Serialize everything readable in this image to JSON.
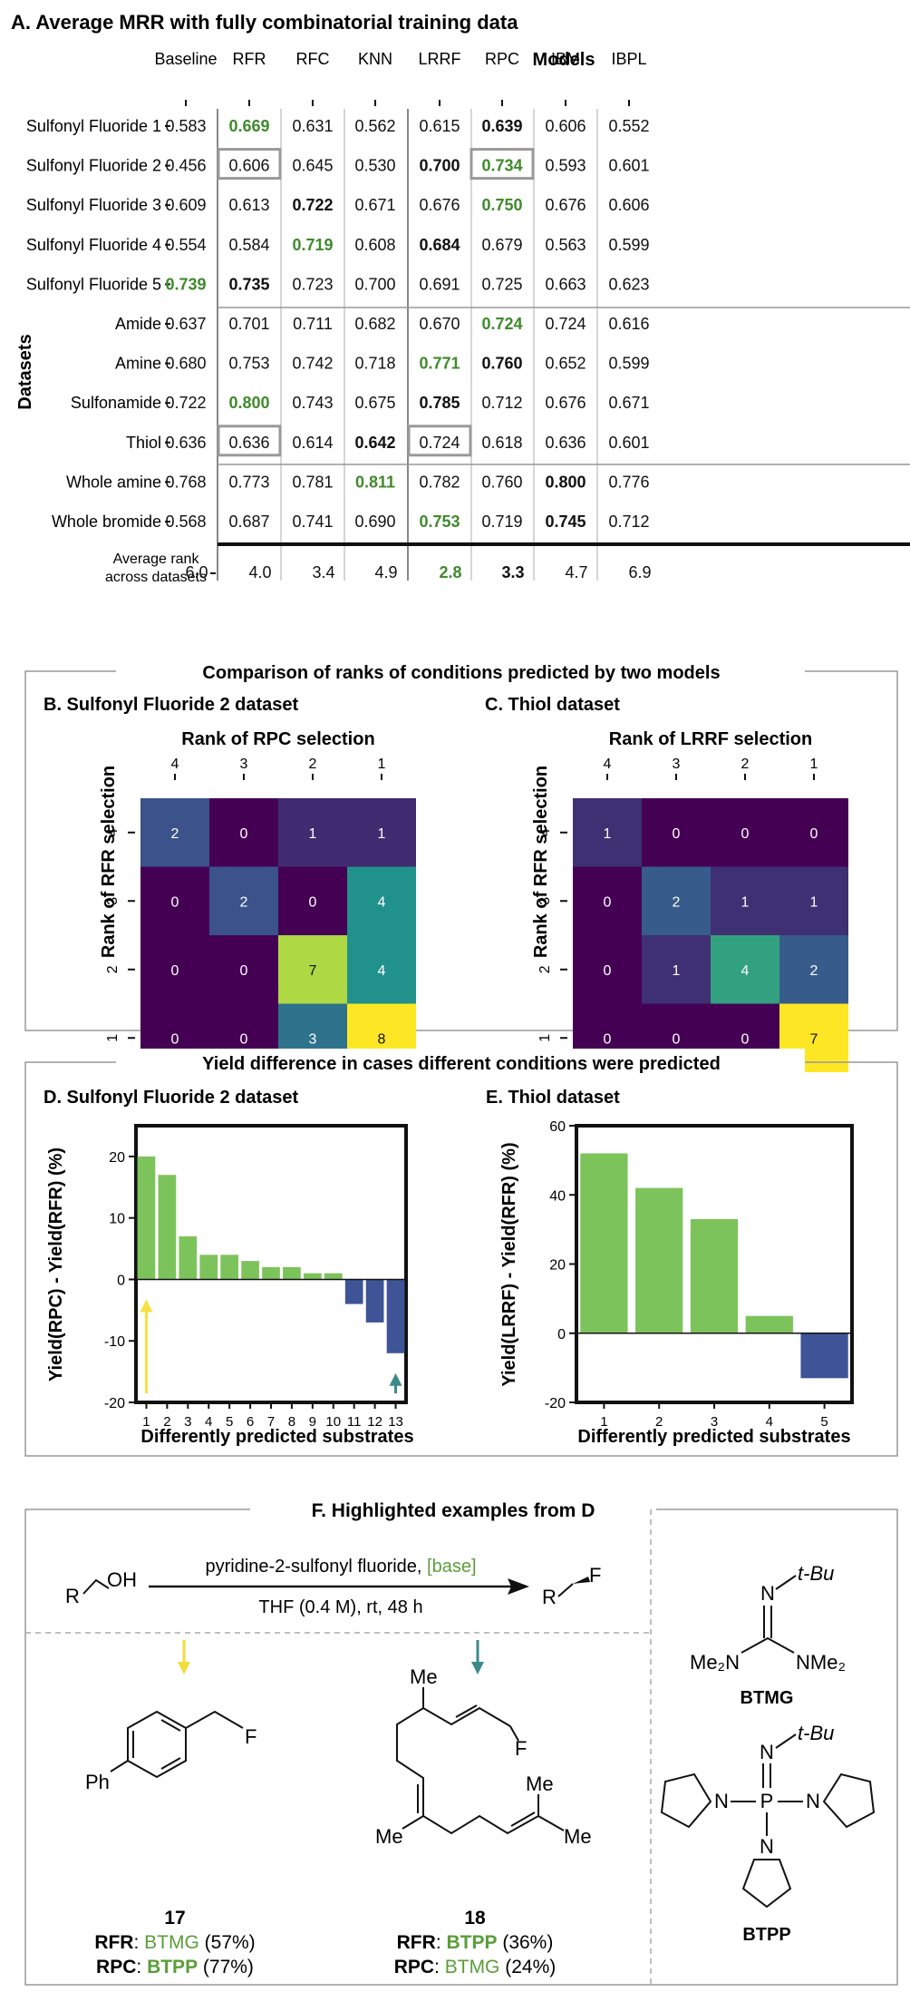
{
  "panelA": {
    "title": "A. Average MRR with fully combinatorial training data",
    "models_label": "Models",
    "datasets_label": "Datasets",
    "columns": [
      "Baseline",
      "RFR",
      "RFC",
      "KNN",
      "LRRF",
      "RPC",
      "IBM",
      "IBPL"
    ],
    "rows": [
      {
        "name": "Sulfonyl Fluoride 1",
        "values": [
          "0.583",
          "0.669",
          "0.631",
          "0.562",
          "0.615",
          "0.639",
          "0.606",
          "0.552"
        ],
        "green": [
          1
        ],
        "bold": [
          5
        ],
        "box": []
      },
      {
        "name": "Sulfonyl Fluoride 2",
        "values": [
          "0.456",
          "0.606",
          "0.645",
          "0.530",
          "0.700",
          "0.734",
          "0.593",
          "0.601"
        ],
        "green": [
          5
        ],
        "bold": [
          4
        ],
        "box": [
          1,
          5
        ]
      },
      {
        "name": "Sulfonyl Fluoride 3",
        "values": [
          "0.609",
          "0.613",
          "0.722",
          "0.671",
          "0.676",
          "0.750",
          "0.676",
          "0.606"
        ],
        "green": [
          5
        ],
        "bold": [
          2
        ],
        "box": []
      },
      {
        "name": "Sulfonyl Fluoride 4",
        "values": [
          "0.554",
          "0.584",
          "0.719",
          "0.608",
          "0.684",
          "0.679",
          "0.563",
          "0.599"
        ],
        "green": [
          2
        ],
        "bold": [
          4
        ],
        "box": []
      },
      {
        "name": "Sulfonyl Fluoride 5",
        "values": [
          "0.739",
          "0.735",
          "0.723",
          "0.700",
          "0.691",
          "0.725",
          "0.663",
          "0.623"
        ],
        "green": [
          0
        ],
        "bold": [
          1
        ],
        "box": []
      },
      {
        "name": "Amide",
        "values": [
          "0.637",
          "0.701",
          "0.711",
          "0.682",
          "0.670",
          "0.724",
          "0.724",
          "0.616"
        ],
        "green": [
          5
        ],
        "bold": [],
        "box": []
      },
      {
        "name": "Amine",
        "values": [
          "0.680",
          "0.753",
          "0.742",
          "0.718",
          "0.771",
          "0.760",
          "0.652",
          "0.599"
        ],
        "green": [
          4
        ],
        "bold": [
          5
        ],
        "box": []
      },
      {
        "name": "Sulfonamide",
        "values": [
          "0.722",
          "0.800",
          "0.743",
          "0.675",
          "0.785",
          "0.712",
          "0.676",
          "0.671"
        ],
        "green": [
          1
        ],
        "bold": [
          4
        ],
        "box": []
      },
      {
        "name": "Thiol",
        "values": [
          "0.636",
          "0.636",
          "0.614",
          "0.642",
          "0.724",
          "0.618",
          "0.636",
          "0.601"
        ],
        "green": [],
        "bold": [
          3
        ],
        "box": [
          1,
          4
        ]
      },
      {
        "name": "Whole amine",
        "values": [
          "0.768",
          "0.773",
          "0.781",
          "0.811",
          "0.782",
          "0.760",
          "0.800",
          "0.776"
        ],
        "green": [
          3
        ],
        "bold": [
          6
        ],
        "box": []
      },
      {
        "name": "Whole bromide",
        "values": [
          "0.568",
          "0.687",
          "0.741",
          "0.690",
          "0.753",
          "0.719",
          "0.745",
          "0.712"
        ],
        "green": [
          4
        ],
        "bold": [
          6
        ],
        "box": []
      }
    ],
    "rank_label_1": "Average rank",
    "rank_label_2": "across datasets",
    "rank_values": [
      "6.0",
      "4.0",
      "3.4",
      "4.9",
      "2.8",
      "3.3",
      "4.7",
      "6.9"
    ],
    "rank_green": [
      4
    ],
    "rank_bold": [
      5
    ]
  },
  "panelBC": {
    "header": "Comparison of ranks of conditions predicted by two models",
    "B_title": "B. Sulfonyl Fluoride 2 dataset",
    "B_xlabel": "Rank of RPC selection",
    "B_ylabel": "Rank of RFR selection",
    "C_title": "C. Thiol dataset",
    "C_xlabel": "Rank of LRRF selection",
    "C_ylabel": "Rank of RFR selection",
    "tick_labels": [
      "4",
      "3",
      "2",
      "1"
    ]
  },
  "panelDE": {
    "header": "Yield difference in cases different conditions were predicted",
    "D_title": "D. Sulfonyl Fluoride 2 dataset",
    "D_ylabel": "Yield(RPC) - Yield(RFR) (%)",
    "E_title": "E. Thiol dataset",
    "E_ylabel": "Yield(LRRF) - Yield(RFR) (%)",
    "xlabel": "Differently predicted substrates"
  },
  "chart_data": [
    {
      "type": "heatmap",
      "title": "B. Sulfonyl Fluoride 2 dataset",
      "xlabel": "Rank of RPC selection",
      "ylabel": "Rank of RFR selection",
      "x": [
        "4",
        "3",
        "2",
        "1"
      ],
      "y": [
        "4",
        "3",
        "2",
        "1"
      ],
      "values": [
        [
          2,
          0,
          1,
          1
        ],
        [
          0,
          2,
          0,
          4
        ],
        [
          0,
          0,
          7,
          4
        ],
        [
          0,
          0,
          3,
          8
        ]
      ],
      "show_zero_labels": [
        [
          true,
          true,
          true,
          true
        ],
        [
          true,
          true,
          true,
          true
        ],
        [
          true,
          true,
          true,
          true
        ],
        [
          true,
          true,
          true,
          true
        ]
      ]
    },
    {
      "type": "heatmap",
      "title": "C. Thiol dataset",
      "xlabel": "Rank of LRRF selection",
      "ylabel": "Rank of RFR selection",
      "x": [
        "4",
        "3",
        "2",
        "1"
      ],
      "y": [
        "4",
        "3",
        "2",
        "1"
      ],
      "values": [
        [
          1,
          0,
          0,
          0
        ],
        [
          0,
          2,
          1,
          1
        ],
        [
          0,
          1,
          4,
          2
        ],
        [
          0,
          0,
          0,
          7
        ]
      ]
    },
    {
      "type": "bar",
      "title": "D. Sulfonyl Fluoride 2 dataset",
      "xlabel": "Differently predicted substrates",
      "ylabel": "Yield(RPC) - Yield(RFR) (%)",
      "categories": [
        "1",
        "2",
        "3",
        "4",
        "5",
        "6",
        "7",
        "8",
        "9",
        "10",
        "11",
        "12",
        "13"
      ],
      "values": [
        20,
        17,
        7,
        4,
        4,
        3,
        2,
        2,
        1,
        1,
        -4,
        -7,
        -12
      ],
      "ylim": [
        -20,
        25
      ],
      "yticks": [
        -20,
        -10,
        0,
        10,
        20
      ],
      "colors": {
        "positive": "#7dc35b",
        "negative": "#3e5497"
      },
      "arrows": [
        {
          "x": 1,
          "color": "#f6e042"
        },
        {
          "x": 13,
          "color": "#3d8a8a"
        }
      ]
    },
    {
      "type": "bar",
      "title": "E. Thiol dataset",
      "xlabel": "Differently predicted substrates",
      "ylabel": "Yield(LRRF) - Yield(RFR) (%)",
      "categories": [
        "1",
        "2",
        "3",
        "4",
        "5"
      ],
      "values": [
        52,
        42,
        33,
        5,
        -13
      ],
      "ylim": [
        -20,
        60
      ],
      "yticks": [
        -20,
        0,
        20,
        40,
        60
      ],
      "colors": {
        "positive": "#7dc35b",
        "negative": "#3e5497"
      }
    }
  ],
  "panelF": {
    "title": "F. Highlighted examples from D",
    "reactant": "R",
    "oh": "OH",
    "reagent_1": "pyridine-2-sulfonyl fluoride, ",
    "reagent_base": "[base]",
    "conditions": "THF (0.4 M), rt, 48 h",
    "product_r": "R",
    "product_f": "F",
    "btmg_name": "BTMG",
    "btpp_name": "BTPP",
    "tbu": "t-Bu",
    "n": "N",
    "p": "P",
    "me2n": "Me₂N",
    "nme2": "NMe₂",
    "ph": "Ph",
    "me": "Me",
    "f": "F",
    "cmpd17": "17",
    "cmpd18": "18",
    "ex17_rfr_label": "RFR",
    "ex17_rfr_base": "BTMG",
    "ex17_rfr_yield": " (57%)",
    "ex17_rpc_label": "RPC",
    "ex17_rpc_base": "BTPP",
    "ex17_rpc_yield": " (77%)",
    "ex18_rfr_label": "RFR",
    "ex18_rfr_base": "BTPP",
    "ex18_rfr_yield": " (36%)",
    "ex18_rpc_label": "RPC",
    "ex18_rpc_base": "BTMG",
    "ex18_rpc_yield": " (24%)",
    "colors": {
      "green": "#5a9e3a",
      "yellow": "#f2dc3a",
      "teal": "#3d8a8a"
    }
  }
}
